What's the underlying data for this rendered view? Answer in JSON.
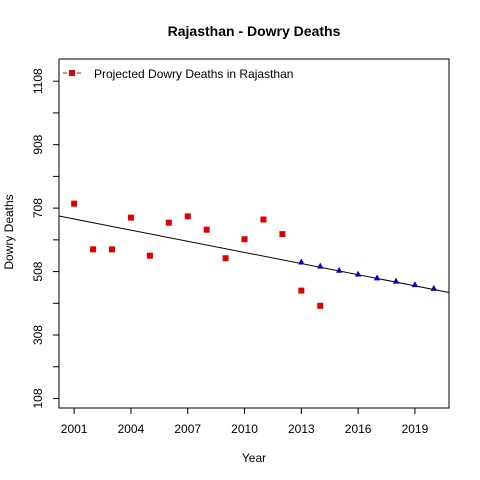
{
  "chart_data": {
    "type": "scatter",
    "title": "Rajasthan  -  Dowry Deaths",
    "xlabel": "Year",
    "ylabel": "Dowry Deaths",
    "xlim": [
      2000.2,
      2020.8
    ],
    "ylim": [
      78,
      1178
    ],
    "x_ticks": [
      2001,
      2004,
      2007,
      2010,
      2013,
      2016,
      2019
    ],
    "y_tick_labels": [
      108,
      308,
      508,
      708,
      908,
      1108
    ],
    "grid": false,
    "legend_position": "top-left",
    "legend": [
      "Projected  Dowry Deaths  in  Rajasthan"
    ],
    "series": [
      {
        "marker": "square",
        "color": "#e00000",
        "x": [
          2001,
          2002,
          2003,
          2004,
          2005,
          2006,
          2007,
          2008,
          2009,
          2010,
          2011,
          2012,
          2013,
          2014
        ],
        "y": [
          722,
          578,
          578,
          678,
          558,
          662,
          682,
          640,
          550,
          610,
          672,
          626,
          448,
          400
        ]
      },
      {
        "marker": "triangle",
        "color": "#0000cc",
        "x": [
          2013,
          2014,
          2015,
          2016,
          2017,
          2018,
          2019,
          2020
        ],
        "y": [
          538,
          525,
          512,
          500,
          488,
          478,
          467,
          455
        ]
      }
    ],
    "trend_line": {
      "color": "#000000",
      "x": [
        2000.2,
        2020.8
      ],
      "y": [
        683,
        442
      ]
    }
  }
}
